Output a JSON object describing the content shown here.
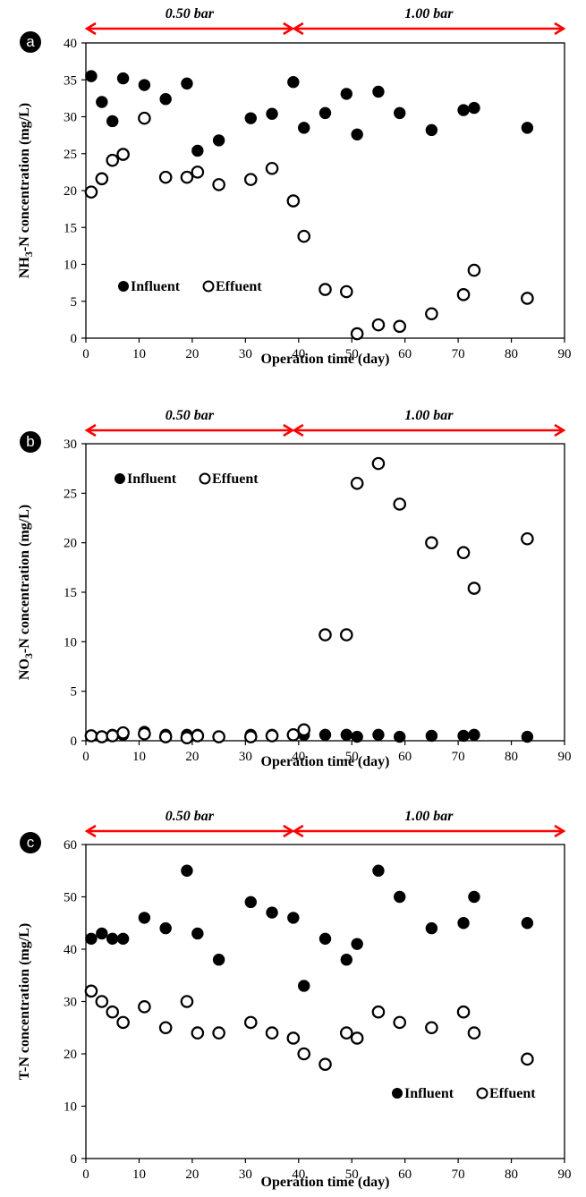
{
  "chart_data": [
    {
      "panel": "a",
      "type": "scatter",
      "title": "",
      "xlabel": "Operation time (day)",
      "ylabel": "NH3-N concentration (mg/L)",
      "ylabel_main": "NH",
      "ylabel_sub": "3",
      "ylabel_rest": "-N concentration (mg/L)",
      "xlim": [
        0,
        90
      ],
      "ylim": [
        0,
        40
      ],
      "xticks": [
        0,
        10,
        20,
        30,
        40,
        50,
        60,
        70,
        80,
        90
      ],
      "yticks": [
        0,
        5,
        10,
        15,
        20,
        25,
        30,
        35,
        40
      ],
      "pressure_phases": [
        {
          "label": "0.50 bar",
          "start": 0,
          "end": 39
        },
        {
          "label": "1.00 bar",
          "start": 39,
          "end": 90
        }
      ],
      "legend_position": "left-bottom",
      "series": [
        {
          "name": "Influent",
          "marker": "filled-circle",
          "x": [
            1,
            3,
            5,
            7,
            11,
            15,
            19,
            21,
            25,
            31,
            35,
            39,
            41,
            45,
            49,
            51,
            55,
            59,
            65,
            71,
            73,
            83
          ],
          "y": [
            35.5,
            32.0,
            29.4,
            35.2,
            34.3,
            32.4,
            34.5,
            25.4,
            26.8,
            29.8,
            30.4,
            34.7,
            28.5,
            30.5,
            33.1,
            27.6,
            33.4,
            30.5,
            28.2,
            30.9,
            31.2,
            28.5
          ]
        },
        {
          "name": "Effuent",
          "marker": "open-circle",
          "x": [
            1,
            3,
            5,
            7,
            11,
            15,
            19,
            21,
            25,
            31,
            35,
            39,
            41,
            45,
            49,
            51,
            55,
            59,
            65,
            71,
            73,
            83
          ],
          "y": [
            19.8,
            21.6,
            24.1,
            24.9,
            29.8,
            21.8,
            21.8,
            22.5,
            20.8,
            21.5,
            23.0,
            18.6,
            13.8,
            6.6,
            6.3,
            0.6,
            1.8,
            1.6,
            3.3,
            5.9,
            9.2,
            5.4
          ]
        }
      ]
    },
    {
      "panel": "b",
      "type": "scatter",
      "title": "",
      "xlabel": "Operation time (day)",
      "ylabel": "NO3-N concentration (mg/L)",
      "ylabel_main": "NO",
      "ylabel_sub": "3",
      "ylabel_rest": "-N concentration (mg/L)",
      "xlim": [
        0,
        90
      ],
      "ylim": [
        0,
        30
      ],
      "xticks": [
        0,
        10,
        20,
        30,
        40,
        50,
        60,
        70,
        80,
        90
      ],
      "yticks": [
        0,
        5,
        10,
        15,
        20,
        25,
        30
      ],
      "pressure_phases": [
        {
          "label": "0.50 bar",
          "start": 0,
          "end": 39
        },
        {
          "label": "1.00 bar",
          "start": 39,
          "end": 90
        }
      ],
      "legend_position": "top-left",
      "series": [
        {
          "name": "Influent",
          "marker": "filled-circle",
          "x": [
            1,
            3,
            5,
            7,
            11,
            15,
            19,
            21,
            25,
            31,
            35,
            39,
            41,
            45,
            49,
            51,
            55,
            59,
            65,
            71,
            73,
            83
          ],
          "y": [
            0.5,
            0.4,
            0.6,
            0.6,
            0.9,
            0.6,
            0.6,
            0.6,
            0.4,
            0.6,
            0.6,
            0.6,
            0.6,
            0.6,
            0.6,
            0.4,
            0.6,
            0.4,
            0.5,
            0.5,
            0.6,
            0.4
          ]
        },
        {
          "name": "Effuent",
          "marker": "open-circle",
          "x": [
            1,
            3,
            5,
            7,
            11,
            15,
            19,
            21,
            25,
            31,
            35,
            39,
            41,
            45,
            49,
            51,
            55,
            59,
            65,
            71,
            73,
            83
          ],
          "y": [
            0.5,
            0.4,
            0.5,
            0.8,
            0.7,
            0.4,
            0.3,
            0.5,
            0.4,
            0.4,
            0.5,
            0.6,
            1.1,
            10.7,
            10.7,
            26.0,
            28.0,
            23.9,
            20.0,
            19.0,
            15.4,
            20.4
          ]
        }
      ]
    },
    {
      "panel": "c",
      "type": "scatter",
      "title": "",
      "xlabel": "Operation time (day)",
      "ylabel": "T-N concentration (mg/L)",
      "ylabel_main": "T-N concentration (mg/L)",
      "ylabel_sub": "",
      "ylabel_rest": "",
      "xlim": [
        0,
        90
      ],
      "ylim": [
        0,
        60
      ],
      "xticks": [
        0,
        10,
        20,
        30,
        40,
        50,
        60,
        70,
        80,
        90
      ],
      "yticks": [
        0,
        10,
        20,
        30,
        40,
        50,
        60
      ],
      "pressure_phases": [
        {
          "label": "0.50 bar",
          "start": 0,
          "end": 39
        },
        {
          "label": "1.00 bar",
          "start": 39,
          "end": 90
        }
      ],
      "legend_position": "bottom-right",
      "series": [
        {
          "name": "Influent",
          "marker": "filled-circle",
          "x": [
            1,
            3,
            5,
            7,
            11,
            15,
            19,
            21,
            25,
            31,
            35,
            39,
            41,
            45,
            49,
            51,
            55,
            59,
            65,
            71,
            73,
            83
          ],
          "y": [
            42,
            43,
            42,
            42,
            46,
            44,
            55,
            43,
            38,
            49,
            47,
            46,
            33,
            42,
            38,
            41,
            55,
            50,
            44,
            45,
            50,
            45
          ]
        },
        {
          "name": "Effuent",
          "marker": "open-circle",
          "x": [
            1,
            3,
            5,
            7,
            11,
            15,
            19,
            21,
            25,
            31,
            35,
            39,
            41,
            45,
            49,
            51,
            55,
            59,
            65,
            71,
            73,
            83
          ],
          "y": [
            32,
            30,
            28,
            26,
            29,
            25,
            30,
            24,
            24,
            26,
            24,
            23,
            20,
            18,
            24,
            23,
            28,
            26,
            25,
            28,
            24,
            19
          ]
        }
      ]
    }
  ],
  "colors": {
    "arrow": "#ff0000",
    "marker": "#000000",
    "badge": "#000000"
  }
}
